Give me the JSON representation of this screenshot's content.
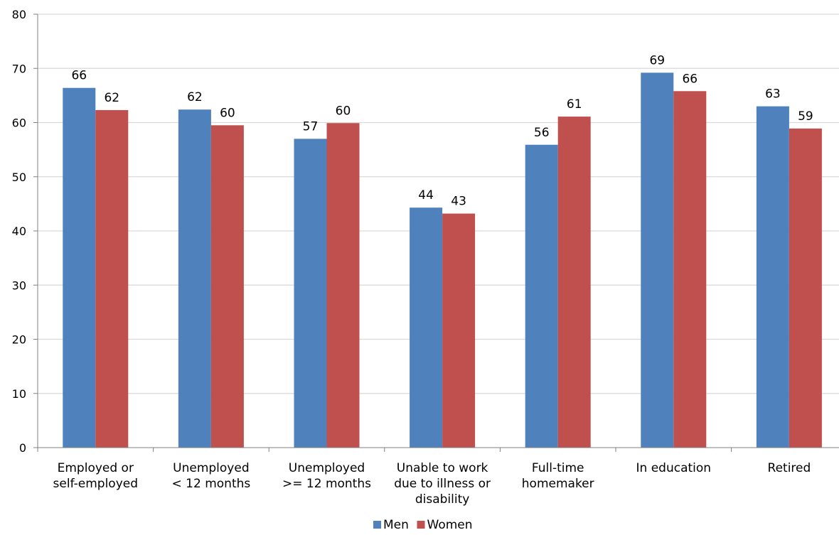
{
  "chart_data": {
    "type": "bar",
    "categories": [
      [
        "Employed or",
        "self-employed"
      ],
      [
        "Unemployed",
        "< 12 months"
      ],
      [
        "Unemployed",
        ">= 12 months"
      ],
      [
        "Unable to work",
        "due to illness or",
        "disability"
      ],
      [
        "Full-time",
        "homemaker"
      ],
      [
        "In education"
      ],
      [
        "Retired"
      ]
    ],
    "series": [
      {
        "name": "Men",
        "color": "#4F81BD",
        "values": [
          66.4,
          62.4,
          57.0,
          44.3,
          55.9,
          69.2,
          63.0
        ],
        "labels": [
          "66",
          "62",
          "57",
          "44",
          "56",
          "69",
          "63"
        ]
      },
      {
        "name": "Women",
        "color": "#C0504D",
        "values": [
          62.3,
          59.5,
          59.9,
          43.2,
          61.1,
          65.8,
          58.9
        ],
        "labels": [
          "62",
          "60",
          "60",
          "43",
          "61",
          "66",
          "59"
        ]
      }
    ],
    "ylim": [
      0,
      80
    ],
    "yticks": [
      0,
      10,
      20,
      30,
      40,
      50,
      60,
      70,
      80
    ],
    "grid": true,
    "gridColor": "#d9d9d9",
    "legend_position": "bottom"
  }
}
